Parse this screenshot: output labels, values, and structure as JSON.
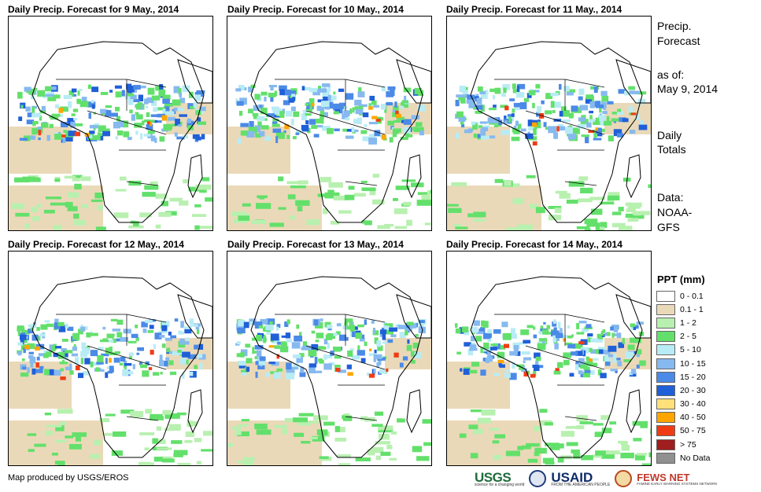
{
  "panels": [
    {
      "title": "Daily Precip. Forecast for 9 May., 2014"
    },
    {
      "title": "Daily Precip. Forecast for 10 May., 2014"
    },
    {
      "title": "Daily Precip. Forecast for 11 May., 2014"
    },
    {
      "title": "Daily Precip. Forecast for 12 May., 2014"
    },
    {
      "title": "Daily Precip. Forecast for 13 May., 2014"
    },
    {
      "title": "Daily Precip. Forecast for 14 May., 2014"
    }
  ],
  "side": {
    "title_line1": "Precip.",
    "title_line2": "Forecast",
    "asof_line1": "as of:",
    "asof_line2": "May 9, 2014",
    "totals_line1": "Daily",
    "totals_line2": "Totals",
    "data_line1": "Data:",
    "data_line2": "NOAA-",
    "data_line3": "GFS"
  },
  "legend": {
    "title": "PPT (mm)",
    "items": [
      {
        "label": "0 - 0.1",
        "color": "#ffffff"
      },
      {
        "label": "0.1 - 1",
        "color": "#ead9b8"
      },
      {
        "label": "1 - 2",
        "color": "#b8f0b0"
      },
      {
        "label": "2 - 5",
        "color": "#63e06b"
      },
      {
        "label": "5 - 10",
        "color": "#b8ecf5"
      },
      {
        "label": "10 - 15",
        "color": "#86b9ef"
      },
      {
        "label": "15 - 20",
        "color": "#4b8ae6"
      },
      {
        "label": "20 - 30",
        "color": "#1f5fd8"
      },
      {
        "label": "30 - 40",
        "color": "#ffe07a"
      },
      {
        "label": "40 - 50",
        "color": "#ffa500"
      },
      {
        "label": "50 - 75",
        "color": "#f03c14"
      },
      {
        "label": "> 75",
        "color": "#a01e1e"
      },
      {
        "label": "No Data",
        "color": "#909090"
      }
    ]
  },
  "credit": "Map produced by USGS/EROS",
  "logos": {
    "usgs": "USGS",
    "usgs_tagline": "science for a changing world",
    "usaid": "USAID",
    "usaid_tagline": "FROM THE AMERICAN PEOPLE",
    "fews": "FEWS NET",
    "fews_tagline": "FAMINE EARLY WARNING SYSTEMS NETWORK"
  }
}
